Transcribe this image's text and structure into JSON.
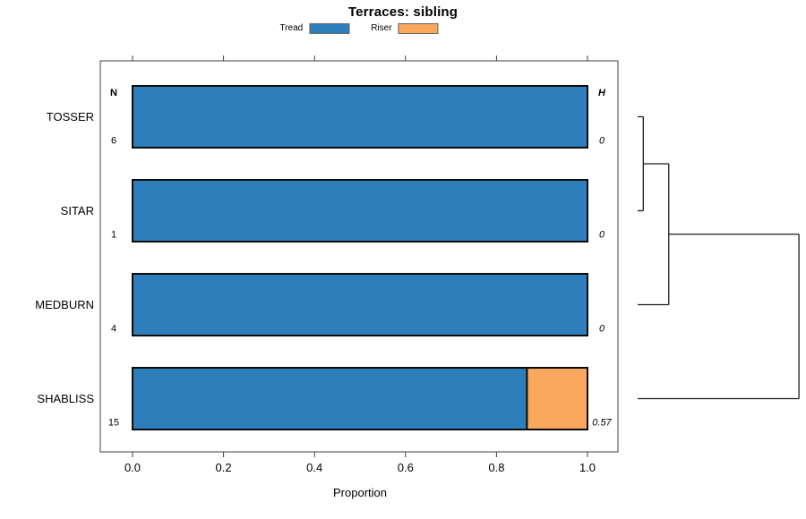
{
  "title": "Terraces: sibling",
  "legend": {
    "items": [
      {
        "label": "Tread",
        "color": "#2E7EBC"
      },
      {
        "label": "Riser",
        "color": "#FAA85E"
      }
    ]
  },
  "axes": {
    "xlabel": "Proportion",
    "x_ticks": [
      "0.0",
      "0.2",
      "0.4",
      "0.6",
      "0.8",
      "1.0"
    ],
    "x_tick_values": [
      0,
      0.2,
      0.4,
      0.6,
      0.8,
      1.0
    ]
  },
  "columns": {
    "n_header": "N",
    "h_header": "H"
  },
  "chart_data": {
    "type": "bar",
    "orientation": "horizontal",
    "stacked": true,
    "title": "Terraces: sibling",
    "xlabel": "Proportion",
    "xlim": [
      0,
      1
    ],
    "grid": false,
    "legend_position": "top",
    "categories": [
      "TOSSER",
      "SITAR",
      "MEDBURN",
      "SHABLISS"
    ],
    "n_values": [
      "6",
      "1",
      "4",
      "15"
    ],
    "h_values": [
      "0",
      "0",
      "0",
      "0.57"
    ],
    "series": [
      {
        "name": "Tread",
        "color": "#2E7EBC",
        "values": [
          1.0,
          1.0,
          1.0,
          0.867
        ]
      },
      {
        "name": "Riser",
        "color": "#FAA85E",
        "values": [
          0.0,
          0.0,
          0.0,
          0.133
        ]
      }
    ],
    "dendrogram": {
      "unit": "H",
      "leaf_height": 0,
      "merges": [
        {
          "join": [
            "TOSSER",
            "SITAR"
          ],
          "height": 0.02
        },
        {
          "join": [
            "TOSSER+SITAR",
            "MEDBURN"
          ],
          "height": 0.11
        },
        {
          "join": [
            "TOSSER+SITAR+MEDBURN",
            "SHABLISS"
          ],
          "height": 0.57
        }
      ]
    }
  }
}
